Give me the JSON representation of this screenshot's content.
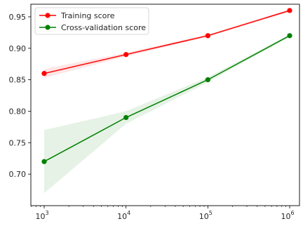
{
  "chart_data": {
    "type": "line",
    "xscale": "log",
    "x": [
      1000,
      10000,
      100000,
      1000000
    ],
    "xticks": [
      {
        "value": 1000,
        "base": "10",
        "exp": "3"
      },
      {
        "value": 10000,
        "base": "10",
        "exp": "4"
      },
      {
        "value": 100000,
        "base": "10",
        "exp": "5"
      },
      {
        "value": 1000000,
        "base": "10",
        "exp": "6"
      }
    ],
    "yticks": [
      "0.70",
      "0.75",
      "0.80",
      "0.85",
      "0.90",
      "0.95"
    ],
    "ylim": [
      0.65,
      0.97
    ],
    "grid": false,
    "legend_position": "top-left",
    "series": [
      {
        "name": "Training score",
        "color": "#ff0000",
        "values": [
          0.86,
          0.89,
          0.92,
          0.96
        ],
        "band_low": [
          0.853,
          0.887,
          0.918,
          0.958
        ],
        "band_high": [
          0.867,
          0.893,
          0.922,
          0.962
        ]
      },
      {
        "name": "Cross-validation score",
        "color": "#008000",
        "values": [
          0.72,
          0.79,
          0.85,
          0.92
        ],
        "band_low": [
          0.67,
          0.78,
          0.846,
          0.918
        ],
        "band_high": [
          0.77,
          0.8,
          0.854,
          0.922
        ]
      }
    ]
  }
}
